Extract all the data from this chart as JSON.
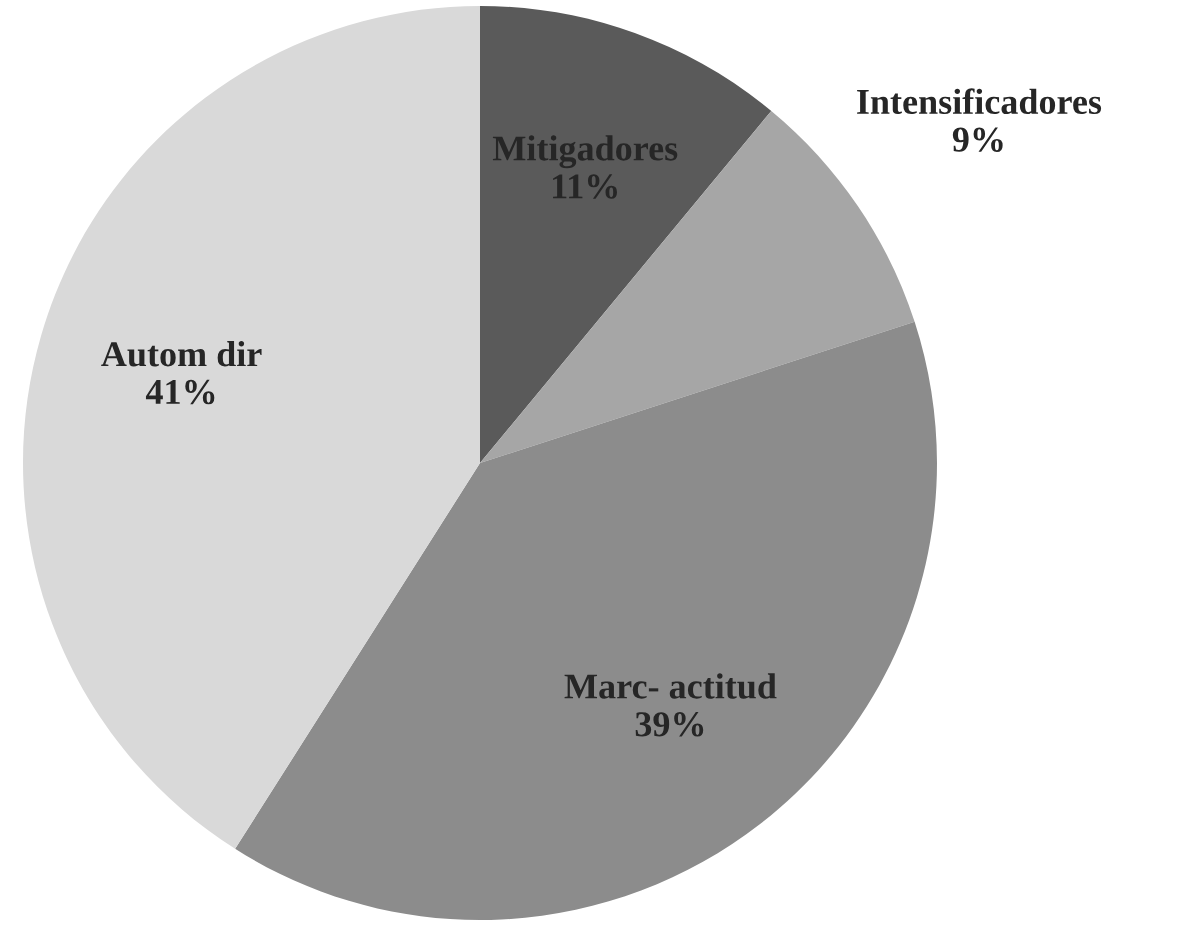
{
  "chart_data": {
    "type": "pie",
    "categories": [
      "Mitigadores",
      "Intensificadores",
      "Marc- actitud",
      "Autom dir"
    ],
    "values": [
      11,
      9,
      39,
      41
    ],
    "colors": [
      "#5a5a5a",
      "#a6a6a6",
      "#8c8c8c",
      "#d9d9d9"
    ],
    "value_labels": [
      "11%",
      "9%",
      "39%",
      "41%"
    ]
  }
}
